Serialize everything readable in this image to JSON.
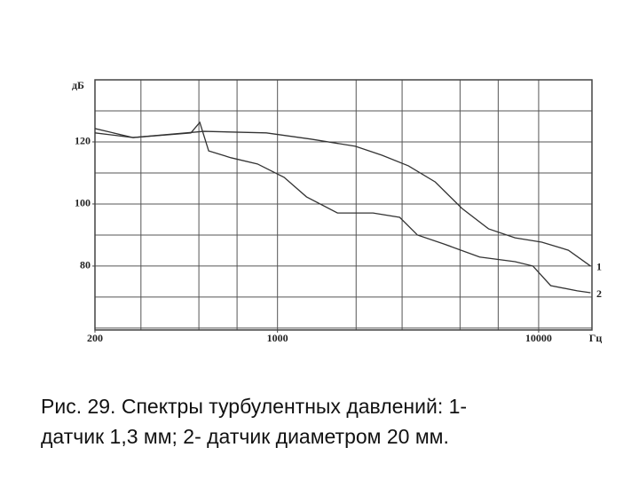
{
  "chart_data": {
    "type": "line",
    "xscale": "log",
    "y_label": "дБ",
    "x_label": "Гц",
    "xlim": [
      200,
      16000
    ],
    "ylim": [
      59.4,
      140
    ],
    "xticks": [
      200,
      1000,
      10000
    ],
    "yticks": [
      80,
      100,
      120
    ],
    "xgrid": [
      300,
      500,
      700,
      1000,
      2000,
      3000,
      5000,
      7000,
      10000
    ],
    "ygrid": [
      60,
      70,
      80,
      90,
      100,
      110,
      120,
      130,
      140
    ],
    "grid": true,
    "series": [
      {
        "name": "1",
        "color": "#333333",
        "x": [
          200,
          280,
          523,
          906,
          1342,
          1986,
          2512,
          3170,
          4017,
          5082,
          6426,
          8122,
          10280,
          13000,
          15800
        ],
        "values": [
          124.3,
          121.4,
          123.4,
          122.9,
          120.9,
          118.6,
          115.7,
          112.3,
          107.1,
          98.6,
          92,
          89.1,
          87.7,
          85.1,
          80
        ]
      },
      {
        "name": "2",
        "color": "#333333",
        "x": [
          200,
          280,
          466,
          504,
          545,
          663,
          838,
          1060,
          1291,
          1697,
          2322,
          2937,
          3435,
          4344,
          5942,
          8122,
          9506,
          11120,
          14060,
          15800
        ],
        "values": [
          122.9,
          121.4,
          122.9,
          126.3,
          117.1,
          114.9,
          112.9,
          108.6,
          102.3,
          97.1,
          97.1,
          95.7,
          90,
          87.1,
          82.9,
          81.4,
          80,
          73.7,
          72,
          71.4
        ]
      }
    ],
    "caption": [
      "Рис. 29. Спектры турбулентных давлений: 1-",
      "датчик 1,3 мм; 2- датчик диаметром 20 мм."
    ]
  }
}
